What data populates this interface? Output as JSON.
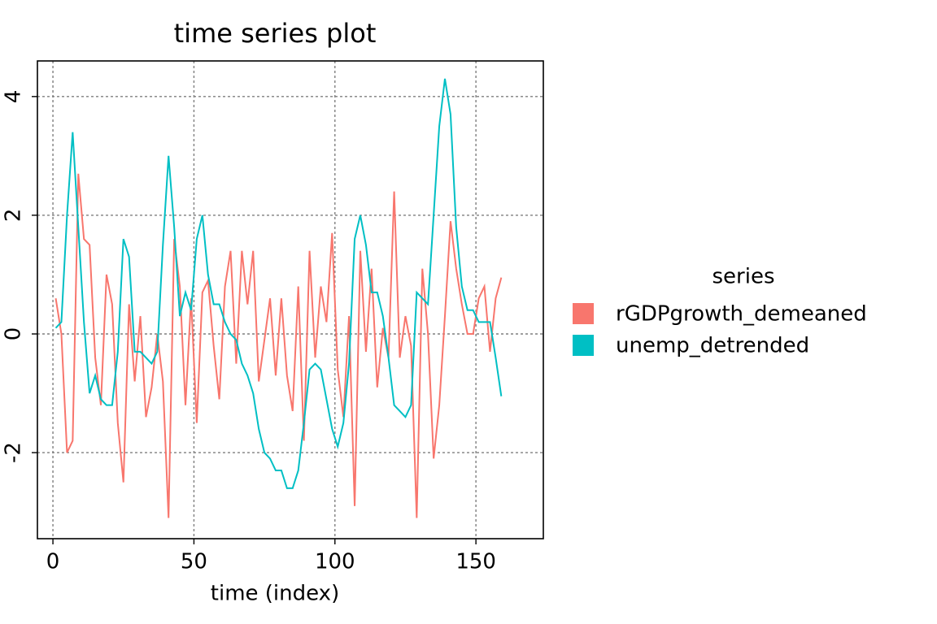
{
  "chart_data": {
    "type": "line",
    "title": "time series plot",
    "xlabel": "time (index)",
    "legend_title": "series",
    "x": [
      1,
      3,
      5,
      7,
      9,
      11,
      13,
      15,
      17,
      19,
      21,
      23,
      25,
      27,
      29,
      31,
      33,
      35,
      37,
      39,
      41,
      43,
      45,
      47,
      49,
      51,
      53,
      55,
      57,
      59,
      61,
      63,
      65,
      67,
      69,
      71,
      73,
      75,
      77,
      79,
      81,
      83,
      85,
      87,
      89,
      91,
      93,
      95,
      97,
      99,
      101,
      103,
      105,
      107,
      109,
      111,
      113,
      115,
      117,
      119,
      121,
      123,
      125,
      127,
      129,
      131,
      133,
      135,
      137,
      139,
      141,
      143,
      145,
      147,
      149,
      151,
      153,
      155,
      157,
      159
    ],
    "series": [
      {
        "name": "rGDPgrowth_demeaned",
        "color": "#f8766d",
        "values": [
          0.6,
          0.0,
          -2.0,
          -1.8,
          2.7,
          1.6,
          1.5,
          -0.4,
          -1.2,
          1.0,
          0.5,
          -1.5,
          -2.5,
          0.5,
          -0.8,
          0.3,
          -1.4,
          -0.9,
          0.0,
          -0.8,
          -3.1,
          1.6,
          0.8,
          -1.2,
          0.6,
          -1.5,
          0.7,
          0.9,
          -0.2,
          -1.1,
          0.8,
          1.4,
          -0.5,
          1.4,
          0.5,
          1.4,
          -0.8,
          -0.1,
          0.6,
          -0.7,
          0.6,
          -0.7,
          -1.3,
          0.8,
          -1.8,
          1.4,
          -0.4,
          0.8,
          0.2,
          1.7,
          -0.6,
          -1.4,
          0.3,
          -2.9,
          1.4,
          -0.3,
          1.1,
          -0.9,
          0.1,
          -0.4,
          2.4,
          -0.4,
          0.3,
          -0.2,
          -3.1,
          1.1,
          0.0,
          -2.1,
          -1.2,
          0.3,
          1.9,
          1.1,
          0.5,
          0.0,
          0.0,
          0.6,
          0.8,
          -0.3,
          0.6,
          0.95
        ]
      },
      {
        "name": "unemp_detrended",
        "color": "#00bfc4",
        "values": [
          0.1,
          0.2,
          2.0,
          3.4,
          1.8,
          0.2,
          -1.0,
          -0.7,
          -1.1,
          -1.2,
          -1.2,
          -0.3,
          1.6,
          1.3,
          -0.3,
          -0.3,
          -0.4,
          -0.5,
          -0.3,
          1.5,
          3.0,
          1.8,
          0.3,
          0.7,
          0.4,
          1.6,
          2.0,
          1.0,
          0.5,
          0.5,
          0.2,
          0.0,
          -0.1,
          -0.5,
          -0.7,
          -1.0,
          -1.6,
          -2.0,
          -2.1,
          -2.3,
          -2.3,
          -2.6,
          -2.6,
          -2.3,
          -1.5,
          -0.6,
          -0.5,
          -0.6,
          -1.1,
          -1.6,
          -1.9,
          -1.5,
          -0.5,
          1.6,
          2.0,
          1.5,
          0.7,
          0.7,
          0.3,
          -0.4,
          -1.2,
          -1.3,
          -1.4,
          -1.2,
          0.7,
          0.6,
          0.5,
          2.0,
          3.5,
          4.3,
          3.7,
          1.8,
          0.8,
          0.4,
          0.4,
          0.2,
          0.2,
          0.2,
          -0.4,
          -1.05
        ]
      }
    ],
    "xlim": [
      -5.5,
      173.9
    ],
    "ylim": [
      -3.45,
      4.6
    ],
    "xticks": [
      0,
      50,
      100,
      150
    ],
    "yticks": [
      -2,
      0,
      2,
      4
    ],
    "grid": true
  }
}
